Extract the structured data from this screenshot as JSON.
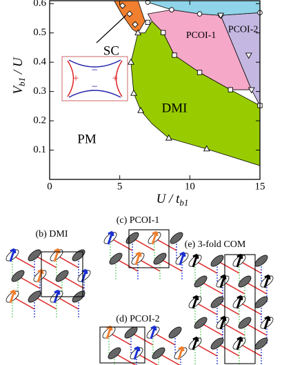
{
  "chart_data": {
    "type": "phase",
    "x_label": {
      "main": "U / t",
      "sub": "b1"
    },
    "y_label": {
      "main": "V",
      "sub": "b1",
      "rest": " / U"
    },
    "xlim": [
      0,
      15
    ],
    "ylim": [
      0,
      0.61
    ],
    "xticks": [
      0,
      5,
      10,
      15
    ],
    "yticks": [
      0.1,
      0.2,
      0.3,
      0.4,
      0.5,
      0.6
    ],
    "pm_label": "PM",
    "series": [
      {
        "name": "DMI",
        "color": "#99cc00",
        "x": [
          6.3,
          5.8,
          6.0,
          6.5,
          7.3,
          8.5,
          11.2,
          15,
          15,
          12.9,
          10.7,
          8.9,
          8.1,
          7.3,
          6.8
        ],
        "y": [
          0.5,
          0.4,
          0.294,
          0.235,
          0.19,
          0.141,
          0.104,
          0.047,
          0.252,
          0.306,
          0.365,
          0.424,
          0.501,
          0.54,
          0.5
        ]
      },
      {
        "name": "SC",
        "color": "#f07f2f",
        "x": [
          4.6,
          6.3,
          6.8,
          6.3,
          5.9,
          5.2
        ],
        "y": [
          0.61,
          0.61,
          0.54,
          0.5,
          0.513,
          0.56
        ]
      },
      {
        "name": "PCOI-1",
        "color": "#f5a8c8",
        "x": [
          7.0,
          8.7,
          10.7,
          12.2,
          14.4,
          12.9,
          10.7,
          8.9,
          8.1,
          7.3
        ],
        "y": [
          0.565,
          0.579,
          0.565,
          0.56,
          0.306,
          0.306,
          0.365,
          0.424,
          0.501,
          0.54
        ]
      },
      {
        "name": "PCOI-2",
        "color": "#c4b8e2",
        "x": [
          12.2,
          15,
          15,
          14.4
        ],
        "y": [
          0.56,
          0.569,
          0.252,
          0.306
        ]
      },
      {
        "color": "#8fd4e8",
        "x": [
          6.8,
          15,
          15,
          12.2,
          10.7,
          8.7,
          7.0
        ],
        "y": [
          0.61,
          0.61,
          0.569,
          0.56,
          0.565,
          0.579,
          0.605
        ]
      }
    ],
    "markers": [
      {
        "shape": "diamond",
        "x": [
          5.2,
          5.7,
          6.1
        ],
        "y": [
          0.593,
          0.565,
          0.529
        ]
      },
      {
        "shape": "circle",
        "x": [
          7.0,
          8.7,
          10.7,
          12.2,
          15
        ],
        "y": [
          0.605,
          0.579,
          0.565,
          0.56,
          0.569
        ]
      },
      {
        "shape": "square",
        "x": [
          7.0,
          8.1,
          8.9,
          10.7,
          12.9,
          15
        ],
        "y": [
          0.536,
          0.501,
          0.424,
          0.365,
          0.306,
          0.252
        ]
      },
      {
        "shape": "triangle",
        "x": [
          6.3,
          5.8,
          6.0,
          6.5,
          8.5,
          11.2
        ],
        "y": [
          0.5,
          0.4,
          0.294,
          0.235,
          0.141,
          0.104
        ]
      },
      {
        "shape": "triangle-down",
        "x": [
          12.2,
          14.2,
          14.4
        ],
        "y": [
          0.56,
          0.424,
          0.306
        ]
      }
    ],
    "inset": {
      "plus": "+",
      "minus": "−"
    },
    "panels": [
      {
        "title": "(b) DMI"
      },
      {
        "title": "(c) PCOI-1"
      },
      {
        "title": "(d) PCOI-2"
      },
      {
        "title": "(e) 3-fold COM"
      }
    ]
  }
}
